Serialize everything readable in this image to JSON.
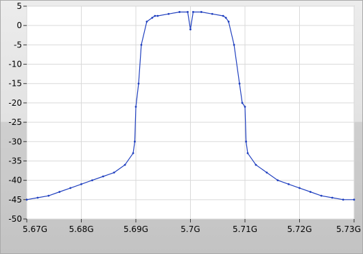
{
  "chart_data": {
    "type": "line",
    "title": "",
    "xlabel": "",
    "ylabel": "",
    "xlim": [
      5.67,
      5.73
    ],
    "ylim": [
      -50,
      5
    ],
    "x_ticks": [
      5.67,
      5.68,
      5.69,
      5.7,
      5.71,
      5.72,
      5.73
    ],
    "x_tick_labels": [
      "5.67G",
      "5.68G",
      "5.69G",
      "5.7G",
      "5.71G",
      "5.72G",
      "5.73G"
    ],
    "y_ticks": [
      5,
      0,
      -5,
      -10,
      -15,
      -20,
      -25,
      -30,
      -35,
      -40,
      -45,
      -50
    ],
    "y_tick_labels": [
      "5",
      "0",
      "-5",
      "-10",
      "-15",
      "-20",
      "-25",
      "-30",
      "-35",
      "-40",
      "-45",
      "-50"
    ],
    "grid": true,
    "legend": "none",
    "series_color": "#1f3fbf",
    "series": [
      {
        "x": [
          5.67,
          5.672,
          5.674,
          5.676,
          5.678,
          5.68,
          5.682,
          5.684,
          5.686,
          5.688,
          5.6895,
          5.6898,
          5.69,
          5.6905,
          5.691,
          5.692,
          5.693,
          5.6935,
          5.694,
          5.696,
          5.698,
          5.6995,
          5.7,
          5.7005,
          5.702,
          5.704,
          5.706,
          5.7065,
          5.707,
          5.708,
          5.709,
          5.7095,
          5.71,
          5.7102,
          5.7105,
          5.712,
          5.714,
          5.716,
          5.718,
          5.72,
          5.722,
          5.724,
          5.726,
          5.728,
          5.73
        ],
        "y": [
          -45,
          -44.5,
          -44,
          -43,
          -42,
          -41,
          -40,
          -39,
          -38,
          -36,
          -33,
          -30,
          -21,
          -15,
          -5,
          1,
          2,
          2.5,
          2.5,
          3,
          3.5,
          3.5,
          -1,
          3.5,
          3.5,
          3,
          2.5,
          2,
          1,
          -5,
          -15,
          -20,
          -21,
          -30,
          -33,
          -36,
          -38,
          -40,
          -41,
          -42,
          -43,
          -44,
          -44.5,
          -45,
          -45
        ]
      }
    ]
  }
}
